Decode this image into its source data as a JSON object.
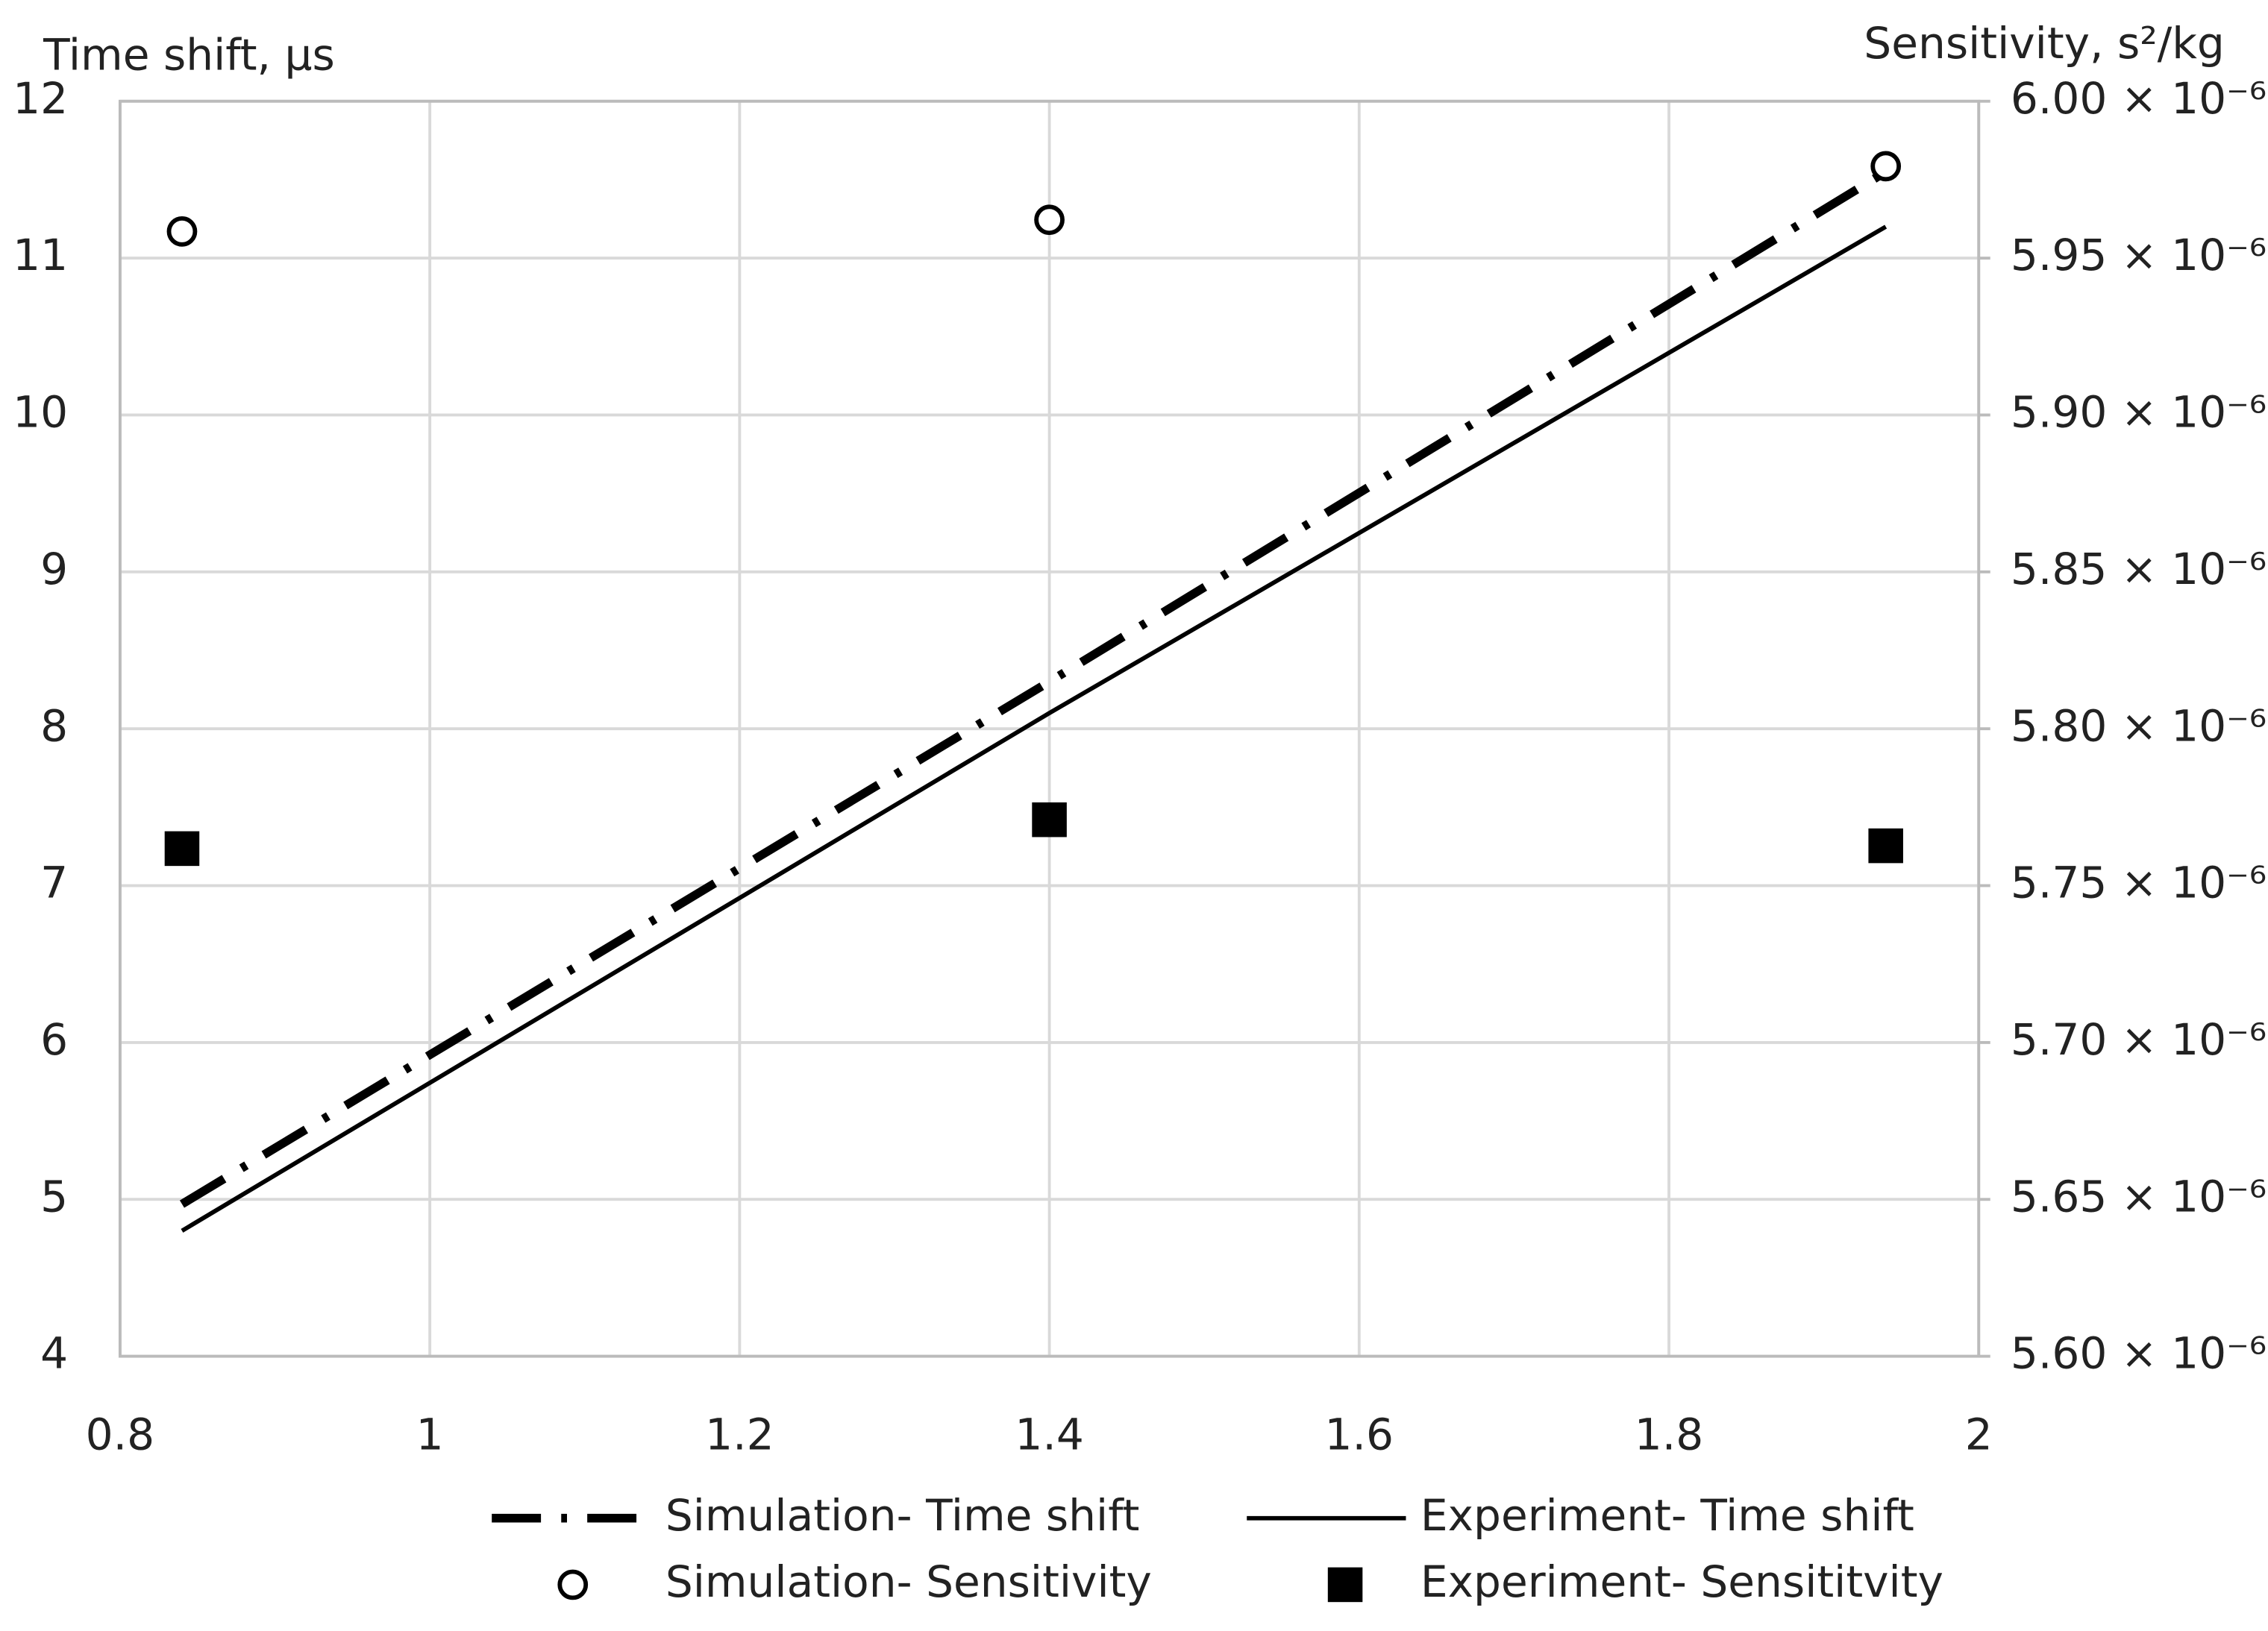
{
  "chart_data": {
    "type": "line",
    "y_label": "Time shift, μs",
    "y2_label": "Sensitivity, s²/kg",
    "x": [
      0.84,
      1.4,
      1.94
    ],
    "xlim": [
      0.8,
      2
    ],
    "xticks": [
      0.8,
      1,
      1.2,
      1.4,
      1.6,
      1.8,
      2
    ],
    "ylim": [
      4,
      12
    ],
    "yticks": [
      4,
      5,
      6,
      7,
      8,
      9,
      10,
      11,
      12
    ],
    "y2lim": [
      5.6e-06,
      6e-06
    ],
    "y2ticks": [
      {
        "value": 5.6e-06,
        "label": "5.60 × 10⁻⁶"
      },
      {
        "value": 5.65e-06,
        "label": "5.65 × 10⁻⁶"
      },
      {
        "value": 5.7e-06,
        "label": "5.70 × 10⁻⁶"
      },
      {
        "value": 5.75e-06,
        "label": "5.75 × 10⁻⁶"
      },
      {
        "value": 5.8e-06,
        "label": "5.80 × 10⁻⁶"
      },
      {
        "value": 5.85e-06,
        "label": "5.85 × 10⁻⁶"
      },
      {
        "value": 5.9e-06,
        "label": "5.90 × 10⁻⁶"
      },
      {
        "value": 5.95e-06,
        "label": "5.95 × 10⁻⁶"
      },
      {
        "value": 6e-06,
        "label": "6.00 × 10⁻⁶"
      }
    ],
    "grid": true,
    "series": [
      {
        "name": "Simulation- Time shift",
        "color": "#000000",
        "style": "dash-dot",
        "values": [
          4.97,
          8.3,
          11.55
        ]
      },
      {
        "name": "Experiment- Time shift",
        "color": "#000000",
        "style": "solid",
        "values": [
          4.8,
          8.1,
          11.2
        ]
      },
      {
        "name": "Simulation- Sensitivity",
        "color": "#000000",
        "marker": "open-circle",
        "axis": "y2",
        "values": [
          5.9585e-06,
          5.9622e-06,
          5.9793e-06
        ]
      },
      {
        "name": "Experiment- Sensititvity",
        "color": "#000000",
        "marker": "square",
        "axis": "y2",
        "values": [
          5.7618e-06,
          5.771e-06,
          5.7627e-06
        ]
      }
    ]
  }
}
